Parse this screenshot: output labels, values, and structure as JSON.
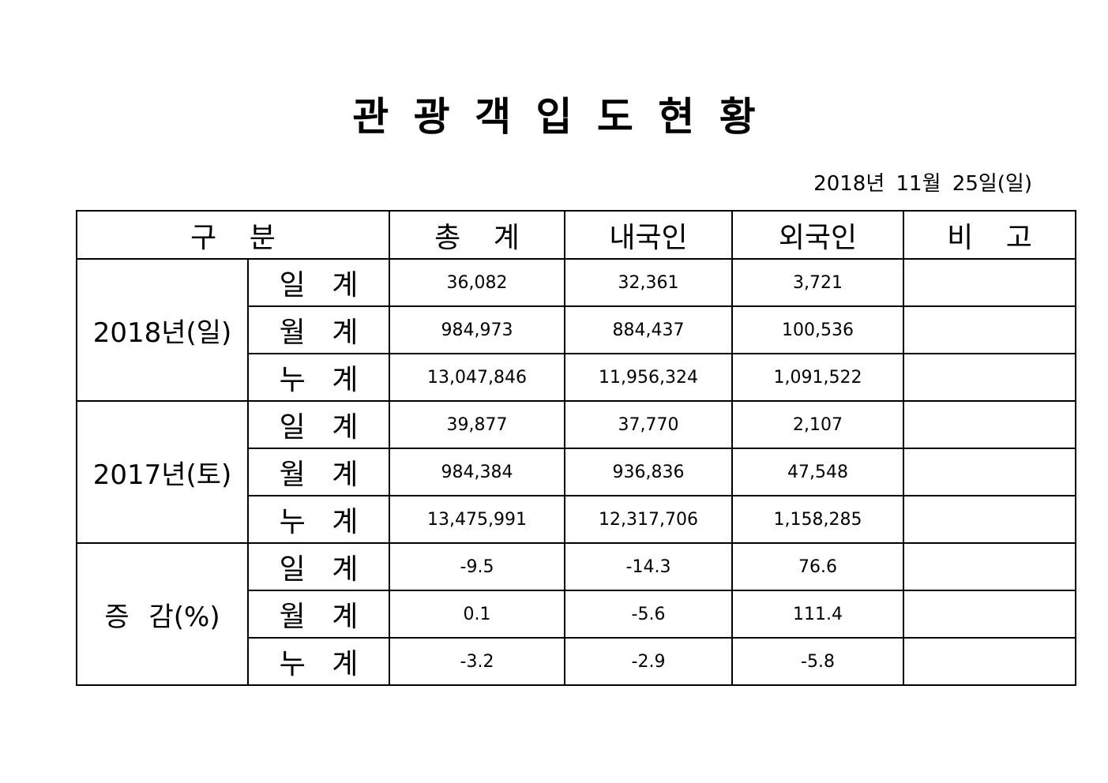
{
  "title": "관 광 객 입 도 현 황",
  "date": "2018년 11월 25일(일)",
  "table": {
    "header": [
      "구 분",
      "총 계",
      "내국인",
      "외국인",
      "비 고"
    ],
    "groups": [
      {
        "label": "2018년(일)",
        "rows": [
          {
            "label": "일 계",
            "values": [
              "36,082",
              "32,361",
              "3,721"
            ]
          },
          {
            "label": "월 계",
            "values": [
              "984,973",
              "884,437",
              "100,536"
            ]
          },
          {
            "label": "누 계",
            "values": [
              "13,047,846",
              "11,956,324",
              "1,091,522"
            ]
          }
        ]
      },
      {
        "label": "2017년(토)",
        "rows": [
          {
            "label": "일 계",
            "values": [
              "39,877",
              "37,770",
              "2,107"
            ]
          },
          {
            "label": "월 계",
            "values": [
              "984,384",
              "936,836",
              "47,548"
            ]
          },
          {
            "label": "누 계",
            "values": [
              "13,475,991",
              "12,317,706",
              "1,158,285"
            ]
          }
        ]
      },
      {
        "label": "증 감(%)",
        "rows": [
          {
            "label": "일 계",
            "values": [
              "-9.5",
              "-14.3",
              "76.6"
            ]
          },
          {
            "label": "월 계",
            "values": [
              "0.1",
              "-5.6",
              "111.4"
            ]
          },
          {
            "label": "누 계",
            "values": [
              "-3.2",
              "-2.9",
              "-5.8"
            ]
          }
        ]
      }
    ]
  }
}
